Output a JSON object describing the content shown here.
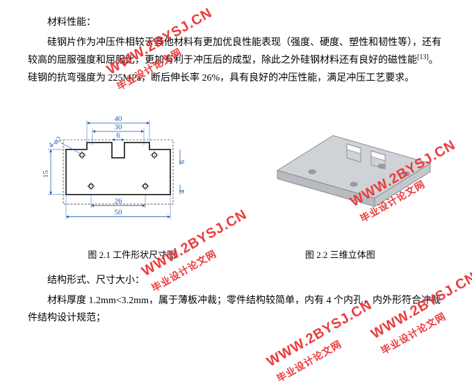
{
  "text": {
    "para1_label": "材料性能：",
    "para2": "硅钢片作为冲压件相较于其他材料有更加优良性能表现（强度、硬度、塑性和韧性等），还有较高的屈服强度和屈服比，更加有利于冲压后的成型，除此之外硅钢材料还有良好的磁性能",
    "para2_cite": "[13]",
    "para2_tail": "。硅钢的抗弯强度为 225MPa，断后伸长率 26%，具有良好的冲压性能，满足冲压工艺要求。",
    "caption_left": "图 2.1  工件形状尺寸图",
    "caption_right": "图 2.2 三维立体图",
    "para3_label": "结构形式、尺寸大小：",
    "para4": "材料厚度 1.2mm<3.2mm，属于薄板冲裁；零件结构较简单，内有 4 个内孔，内外形符合冲裁件结构设计规范；"
  },
  "drawing": {
    "dims": {
      "top_outer": "40",
      "top_inner": "30",
      "slot": "6",
      "bottom_inner": "26",
      "bottom_outer": "50",
      "left_height": "15",
      "chamfer": "4-ø2",
      "right_step": "6",
      "right_small": "4"
    },
    "colors": {
      "line": "#000000",
      "dim": "#1a5fb4",
      "hatch": "#000000",
      "iso_fill": "#cfd2d6",
      "iso_stroke": "#888b90"
    }
  },
  "watermark": {
    "url": "WWW.2BYSJ.CN",
    "label": "毕业设计论文网"
  }
}
